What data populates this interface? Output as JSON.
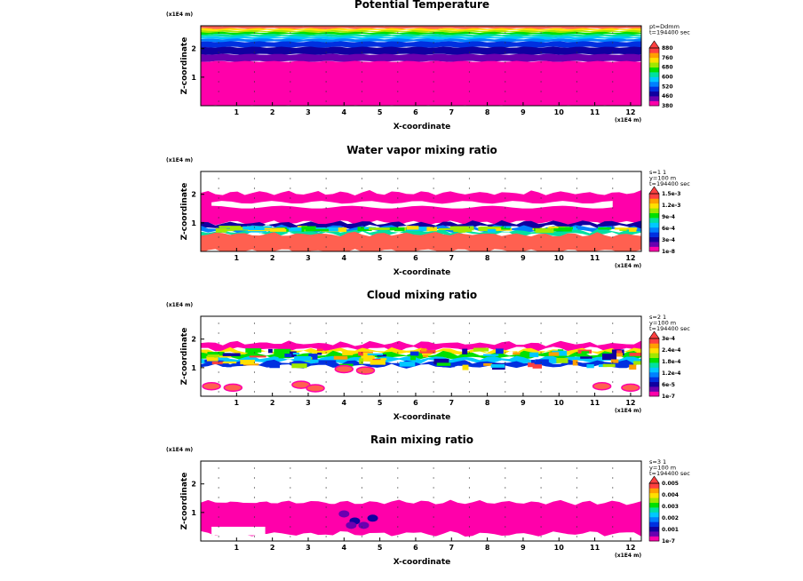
{
  "chart_data": [
    {
      "type": "heatmap",
      "title": "Potential Temperature",
      "xlabel": "X-coordinate",
      "ylabel": "Z-coordinate",
      "x_unit": "(x1E4 m)",
      "z_unit": "(x1E4 m)",
      "xlim": [
        0,
        12.3
      ],
      "ylim": [
        0,
        2.8
      ],
      "x_ticks": [
        "1",
        "2",
        "3",
        "4",
        "5",
        "6",
        "7",
        "8",
        "9",
        "10",
        "11",
        "12"
      ],
      "y_ticks": [
        "1",
        "2"
      ],
      "annotation": [
        "pt=Ddmm",
        "t=194400 sec"
      ],
      "colorbar": {
        "labels": [
          "380",
          "460",
          "520",
          "600",
          "680",
          "760",
          "880"
        ],
        "colors": [
          "#ff00aa",
          "#6a00b0",
          "#1000a0",
          "#0030e0",
          "#0080ff",
          "#00c8ff",
          "#00e0a0",
          "#00e000",
          "#a0e800",
          "#ffe000",
          "#ffa000",
          "#ff4040"
        ]
      },
      "layers": [
        {
          "top": 2.8,
          "bottom": 2.7,
          "color": "#ff6050"
        },
        {
          "top": 2.7,
          "bottom": 2.63,
          "color": "#ffe000"
        },
        {
          "top": 2.63,
          "bottom": 2.57,
          "color": "#a0e800"
        },
        {
          "top": 2.57,
          "bottom": 2.5,
          "color": "#00e000"
        },
        {
          "top": 2.5,
          "bottom": 2.42,
          "color": "#00e0a0"
        },
        {
          "top": 2.42,
          "bottom": 2.34,
          "color": "#00c8ff"
        },
        {
          "top": 2.34,
          "bottom": 2.24,
          "color": "#0080ff"
        },
        {
          "top": 2.24,
          "bottom": 2.05,
          "color": "#0030e0"
        },
        {
          "top": 2.05,
          "bottom": 1.8,
          "color": "#1000a0"
        },
        {
          "top": 1.8,
          "bottom": 1.55,
          "color": "#6a00b0"
        },
        {
          "top": 1.55,
          "bottom": 0,
          "color": "#ff00aa"
        }
      ]
    },
    {
      "type": "heatmap",
      "title": "Water vapor mixing ratio",
      "xlabel": "X-coordinate",
      "ylabel": "Z-coordinate",
      "x_unit": "(x1E4 m)",
      "z_unit": "(x1E4 m)",
      "xlim": [
        0,
        12.3
      ],
      "ylim": [
        0,
        2.8
      ],
      "x_ticks": [
        "1",
        "2",
        "3",
        "4",
        "5",
        "6",
        "7",
        "8",
        "9",
        "10",
        "11",
        "12"
      ],
      "y_ticks": [
        "1",
        "2"
      ],
      "annotation": [
        "s=1 1",
        "y=100 m",
        "t=194400 sec"
      ],
      "colorbar": {
        "labels": [
          "1e-8",
          "3e-4",
          "6e-4",
          "9e-4",
          "1.2e-3",
          "1.5e-3"
        ],
        "colors": [
          "#ff00aa",
          "#6a00b0",
          "#1000a0",
          "#0030e0",
          "#0080ff",
          "#00c8ff",
          "#00e0a0",
          "#00e000",
          "#a0e800",
          "#ffe000",
          "#ffa000",
          "#ff4040"
        ]
      },
      "layers": [
        {
          "top": 2.05,
          "bottom": 1.0,
          "color": "#ff00aa"
        },
        {
          "top": 1.0,
          "bottom": 0.85,
          "color": "#1000a0"
        },
        {
          "top": 0.85,
          "bottom": 0.72,
          "color": "#0080ff"
        },
        {
          "top": 0.72,
          "bottom": 0.6,
          "color": "#00e0a0"
        },
        {
          "top": 0.6,
          "bottom": 0,
          "color": "#ff6050"
        }
      ]
    },
    {
      "type": "heatmap",
      "title": "Cloud mixing ratio",
      "xlabel": "X-coordinate",
      "ylabel": "Z-coordinate",
      "x_unit": "(x1E4 m)",
      "z_unit": "(x1E4 m)",
      "xlim": [
        0,
        12.3
      ],
      "ylim": [
        0,
        2.8
      ],
      "x_ticks": [
        "1",
        "2",
        "3",
        "4",
        "5",
        "6",
        "7",
        "8",
        "9",
        "10",
        "11",
        "12"
      ],
      "y_ticks": [
        "1",
        "2"
      ],
      "annotation": [
        "s=2 1",
        "y=100 m",
        "t=194400 sec"
      ],
      "colorbar": {
        "labels": [
          "1e-7",
          "6e-5",
          "1.2e-4",
          "1.8e-4",
          "2.4e-4",
          "3e-4"
        ],
        "colors": [
          "#ff00aa",
          "#6a00b0",
          "#1000a0",
          "#0030e0",
          "#0080ff",
          "#00c8ff",
          "#00e0a0",
          "#00e000",
          "#a0e800",
          "#ffe000",
          "#ffa000",
          "#ff4040"
        ]
      },
      "layers": [
        {
          "top": 1.85,
          "bottom": 1.65,
          "color": "#ff00aa"
        },
        {
          "top": 1.62,
          "bottom": 1.5,
          "color": "#ffe000"
        },
        {
          "top": 1.5,
          "bottom": 1.35,
          "color": "#00e000"
        },
        {
          "top": 1.35,
          "bottom": 1.2,
          "color": "#00c8ff"
        },
        {
          "top": 1.2,
          "bottom": 1.05,
          "color": "#0030e0"
        }
      ]
    },
    {
      "type": "heatmap",
      "title": "Rain mixing ratio",
      "xlabel": "X-coordinate",
      "ylabel": "Z-coordinate",
      "x_unit": "(x1E4 m)",
      "z_unit": "(x1E4 m)",
      "xlim": [
        0,
        12.3
      ],
      "ylim": [
        0,
        2.8
      ],
      "x_ticks": [
        "1",
        "2",
        "3",
        "4",
        "5",
        "6",
        "7",
        "8",
        "9",
        "10",
        "11",
        "12"
      ],
      "y_ticks": [
        "1",
        "2"
      ],
      "annotation": [
        "s=3 1",
        "y=100 m",
        "t=194400 sec"
      ],
      "colorbar": {
        "labels": [
          "1e-7",
          "0.001",
          "0.002",
          "0.003",
          "0.004",
          "0.005"
        ],
        "colors": [
          "#ff00aa",
          "#6a00b0",
          "#1000a0",
          "#0030e0",
          "#0080ff",
          "#00c8ff",
          "#00e0a0",
          "#00e000",
          "#a0e800",
          "#ffe000",
          "#ffa000",
          "#ff4040"
        ]
      },
      "layers": [
        {
          "top": 1.35,
          "bottom": 0.25,
          "color": "#ff00aa"
        }
      ]
    }
  ]
}
